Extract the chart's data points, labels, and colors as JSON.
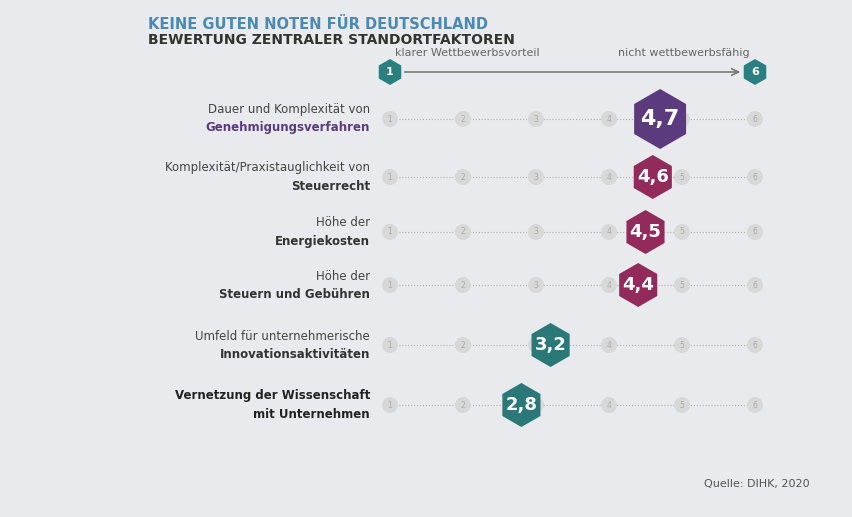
{
  "title_line1": "KEINE GUTEN NOTEN FÜR DEUTSCHLAND",
  "title_line2": "BEWERTUNG ZENTRALER STANDORTFAKTOREN",
  "title_color1": "#4a8ab0",
  "title_color2": "#333333",
  "background_color": "#e8eaed",
  "scale_label_left": "klarer Wettbewerbsvorteil",
  "scale_label_right": "nicht wettbewerbsfähig",
  "source_text": "Quelle: DIHK, 2020",
  "rows": [
    {
      "label_normal": "Dauer und Komplexität von",
      "label_bold": "Genehmigungsverfahren",
      "label_bold_color": "#5b3a7e",
      "value": 4.7,
      "hex_color": "#5b3a7e",
      "hex_large": true
    },
    {
      "label_normal": "Komplexität/Praxistauglichkeit von",
      "label_bold": "Steuerrecht",
      "label_bold_color": "#333333",
      "value": 4.6,
      "hex_color": "#922b5b",
      "hex_large": false
    },
    {
      "label_normal": "Höhe der",
      "label_bold": "Energiekosten",
      "label_bold_color": "#333333",
      "value": 4.5,
      "hex_color": "#922b5b",
      "hex_large": false
    },
    {
      "label_normal": "Höhe der",
      "label_bold": "Steuern und Gebühren",
      "label_bold_color": "#333333",
      "value": 4.4,
      "hex_color": "#922b5b",
      "hex_large": false
    },
    {
      "label_normal": "Umfeld für unternehmerische",
      "label_bold": "Innovationsaktivitäten",
      "label_bold_color": "#333333",
      "value": 3.2,
      "hex_color": "#2a7878",
      "hex_large": false
    },
    {
      "label_normal": "Vernetzung der Wissenschaft",
      "label_bold": "mit Unternehmen",
      "label_bold_color": "#333333",
      "value": 2.8,
      "hex_color": "#2a7878",
      "hex_large": false,
      "both_bold": true
    }
  ],
  "tick_positions": [
    1,
    2,
    3,
    4,
    5,
    6
  ],
  "endpoint_hex_color": "#2a8080",
  "tick_circle_color": "#d8d8d8",
  "tick_text_color": "#aaaaaa",
  "line_color": "#b0b0b0"
}
